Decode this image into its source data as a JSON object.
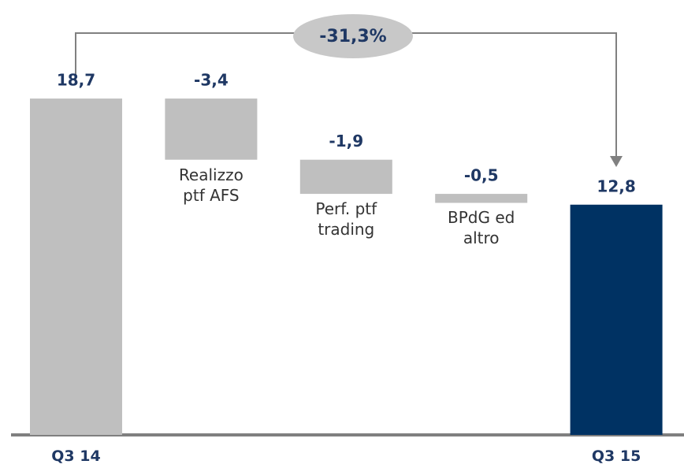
{
  "chart_data": {
    "type": "waterfall",
    "categories": [
      "Q3 14",
      "Realizzo\nptf AFS",
      "Perf. ptf\ntrading",
      "BPdG ed\naltro",
      "Q3 15"
    ],
    "values": [
      18.7,
      -3.4,
      -1.9,
      -0.5,
      12.8
    ],
    "value_labels": [
      "18,7",
      "-3,4",
      "-1,9",
      "-0,5",
      "12,8"
    ],
    "colors": [
      "#bfbfbf",
      "#bfbfbf",
      "#bfbfbf",
      "#bfbfbf",
      "#003263"
    ],
    "annotation": "-31,3%"
  }
}
